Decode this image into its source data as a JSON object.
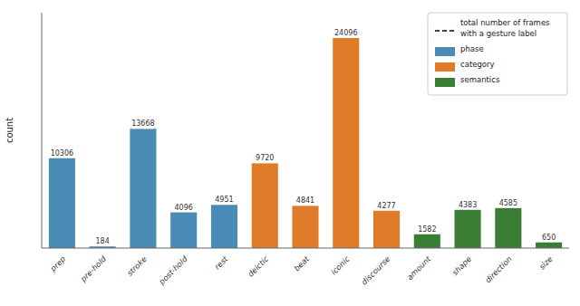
{
  "chart_data": {
    "type": "bar",
    "categories": [
      "prep",
      "pre-hold",
      "stroke",
      "post-hold",
      "rest",
      "deictic",
      "beat",
      "iconic",
      "discourse",
      "amount",
      "shape",
      "direction",
      "size"
    ],
    "series": [
      {
        "name": "total number of frames\nwith a gesture label",
        "type": "line",
        "line_style": "dashed",
        "color": "#000000",
        "values": [
          null,
          null,
          null,
          null,
          null,
          null,
          null,
          null,
          null,
          null,
          null,
          null,
          null
        ]
      },
      {
        "name": "phase",
        "type": "bar",
        "color": "#4a8bb5",
        "values": [
          10306,
          184,
          13668,
          4096,
          4951,
          null,
          null,
          null,
          null,
          null,
          null,
          null,
          null
        ]
      },
      {
        "name": "category",
        "type": "bar",
        "color": "#e07b2a",
        "values": [
          null,
          null,
          null,
          null,
          null,
          9720,
          4841,
          24096,
          4277,
          null,
          null,
          null,
          null
        ]
      },
      {
        "name": "semantics",
        "type": "bar",
        "color": "#3a7d34",
        "values": [
          null,
          null,
          null,
          null,
          null,
          null,
          null,
          null,
          null,
          1582,
          4383,
          4585,
          650
        ]
      }
    ],
    "stacked": true,
    "ylabel": "count",
    "ylim": [
      0,
      27000
    ],
    "tick_labels": "x",
    "data_labels": true,
    "legend": "upper right"
  }
}
